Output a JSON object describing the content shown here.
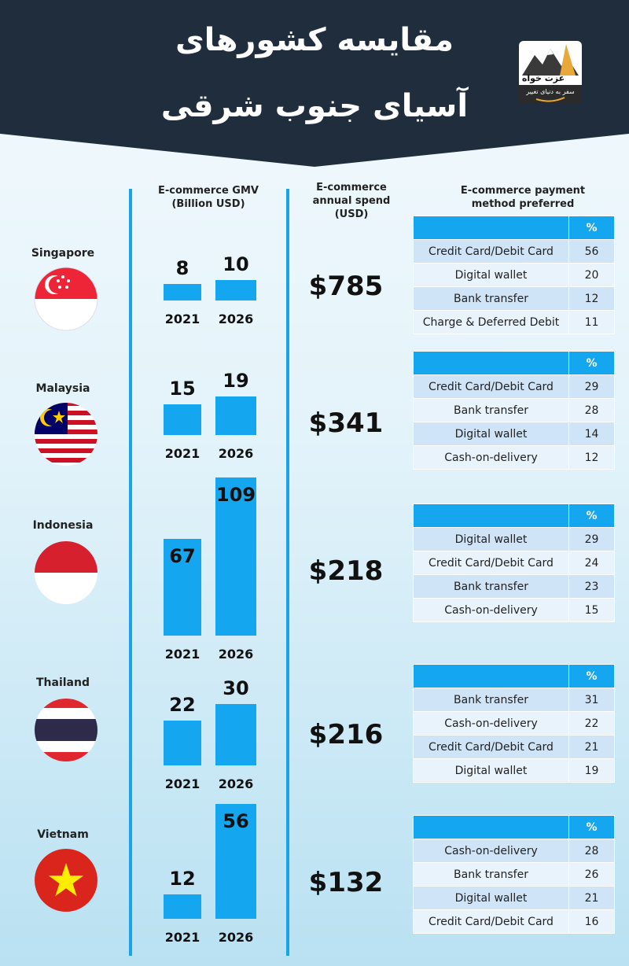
{
  "header": {
    "title_line1": "مقایسه کشورهای",
    "title_line2": "آسیای جنوب شرقی",
    "logo_text": "عزت خواه",
    "logo_subtext": "سفر به دنیای تغییر",
    "colors": {
      "background": "#1f2d3d",
      "accent": "#15a6f0"
    }
  },
  "columns": {
    "gmv": {
      "line1": "E-commerce GMV",
      "line2": "(Billion USD)"
    },
    "spend": {
      "line1": "E-commerce",
      "line2": "annual spend",
      "line3": "(USD)"
    },
    "payment": {
      "line1": "E-commerce payment",
      "line2": "method preferred",
      "pct_header": "%"
    }
  },
  "chart_data": {
    "type": "bar",
    "title": "E-commerce GMV (Billion USD)",
    "categories": [
      "Singapore",
      "Malaysia",
      "Indonesia",
      "Thailand",
      "Vietnam"
    ],
    "series": [
      {
        "name": "2021",
        "values": [
          8,
          15,
          67,
          22,
          12
        ]
      },
      {
        "name": "2026",
        "values": [
          10,
          19,
          109,
          30,
          56
        ]
      }
    ],
    "countries": [
      {
        "name": "Singapore",
        "gmv_2021": 8,
        "gmv_2026": 10,
        "year1": "2021",
        "year2": "2026",
        "spend": "$785",
        "payments": [
          {
            "method": "Credit Card/Debit Card",
            "pct": "56"
          },
          {
            "method": "Digital wallet",
            "pct": "20"
          },
          {
            "method": "Bank transfer",
            "pct": "12"
          },
          {
            "method": "Charge & Deferred Debit",
            "pct": "11"
          }
        ]
      },
      {
        "name": "Malaysia",
        "gmv_2021": 15,
        "gmv_2026": 19,
        "year1": "2021",
        "year2": "2026",
        "spend": "$341",
        "payments": [
          {
            "method": "Credit Card/Debit Card",
            "pct": "29"
          },
          {
            "method": "Bank transfer",
            "pct": "28"
          },
          {
            "method": "Digital wallet",
            "pct": "14"
          },
          {
            "method": "Cash-on-delivery",
            "pct": "12"
          }
        ]
      },
      {
        "name": "Indonesia",
        "gmv_2021": 67,
        "gmv_2026": 109,
        "year1": "2021",
        "year2": "2026",
        "spend": "$218",
        "payments": [
          {
            "method": "Digital wallet",
            "pct": "29"
          },
          {
            "method": "Credit Card/Debit Card",
            "pct": "24"
          },
          {
            "method": "Bank transfer",
            "pct": "23"
          },
          {
            "method": "Cash-on-delivery",
            "pct": "15"
          }
        ]
      },
      {
        "name": "Thailand",
        "gmv_2021": 22,
        "gmv_2026": 30,
        "year1": "2021",
        "year2": "2026",
        "spend": "$216",
        "payments": [
          {
            "method": "Bank transfer",
            "pct": "31"
          },
          {
            "method": "Cash-on-delivery",
            "pct": "22"
          },
          {
            "method": "Credit Card/Debit Card",
            "pct": "21"
          },
          {
            "method": "Digital wallet",
            "pct": "19"
          }
        ]
      },
      {
        "name": "Vietnam",
        "gmv_2021": 12,
        "gmv_2026": 56,
        "year1": "2021",
        "year2": "2026",
        "spend": "$132",
        "payments": [
          {
            "method": "Cash-on-delivery",
            "pct": "28"
          },
          {
            "method": "Bank transfer",
            "pct": "26"
          },
          {
            "method": "Digital wallet",
            "pct": "21"
          },
          {
            "method": "Credit Card/Debit Card",
            "pct": "16"
          }
        ]
      }
    ]
  },
  "flags": [
    "singapore-flag",
    "malaysia-flag",
    "indonesia-flag",
    "thailand-flag",
    "vietnam-flag"
  ]
}
